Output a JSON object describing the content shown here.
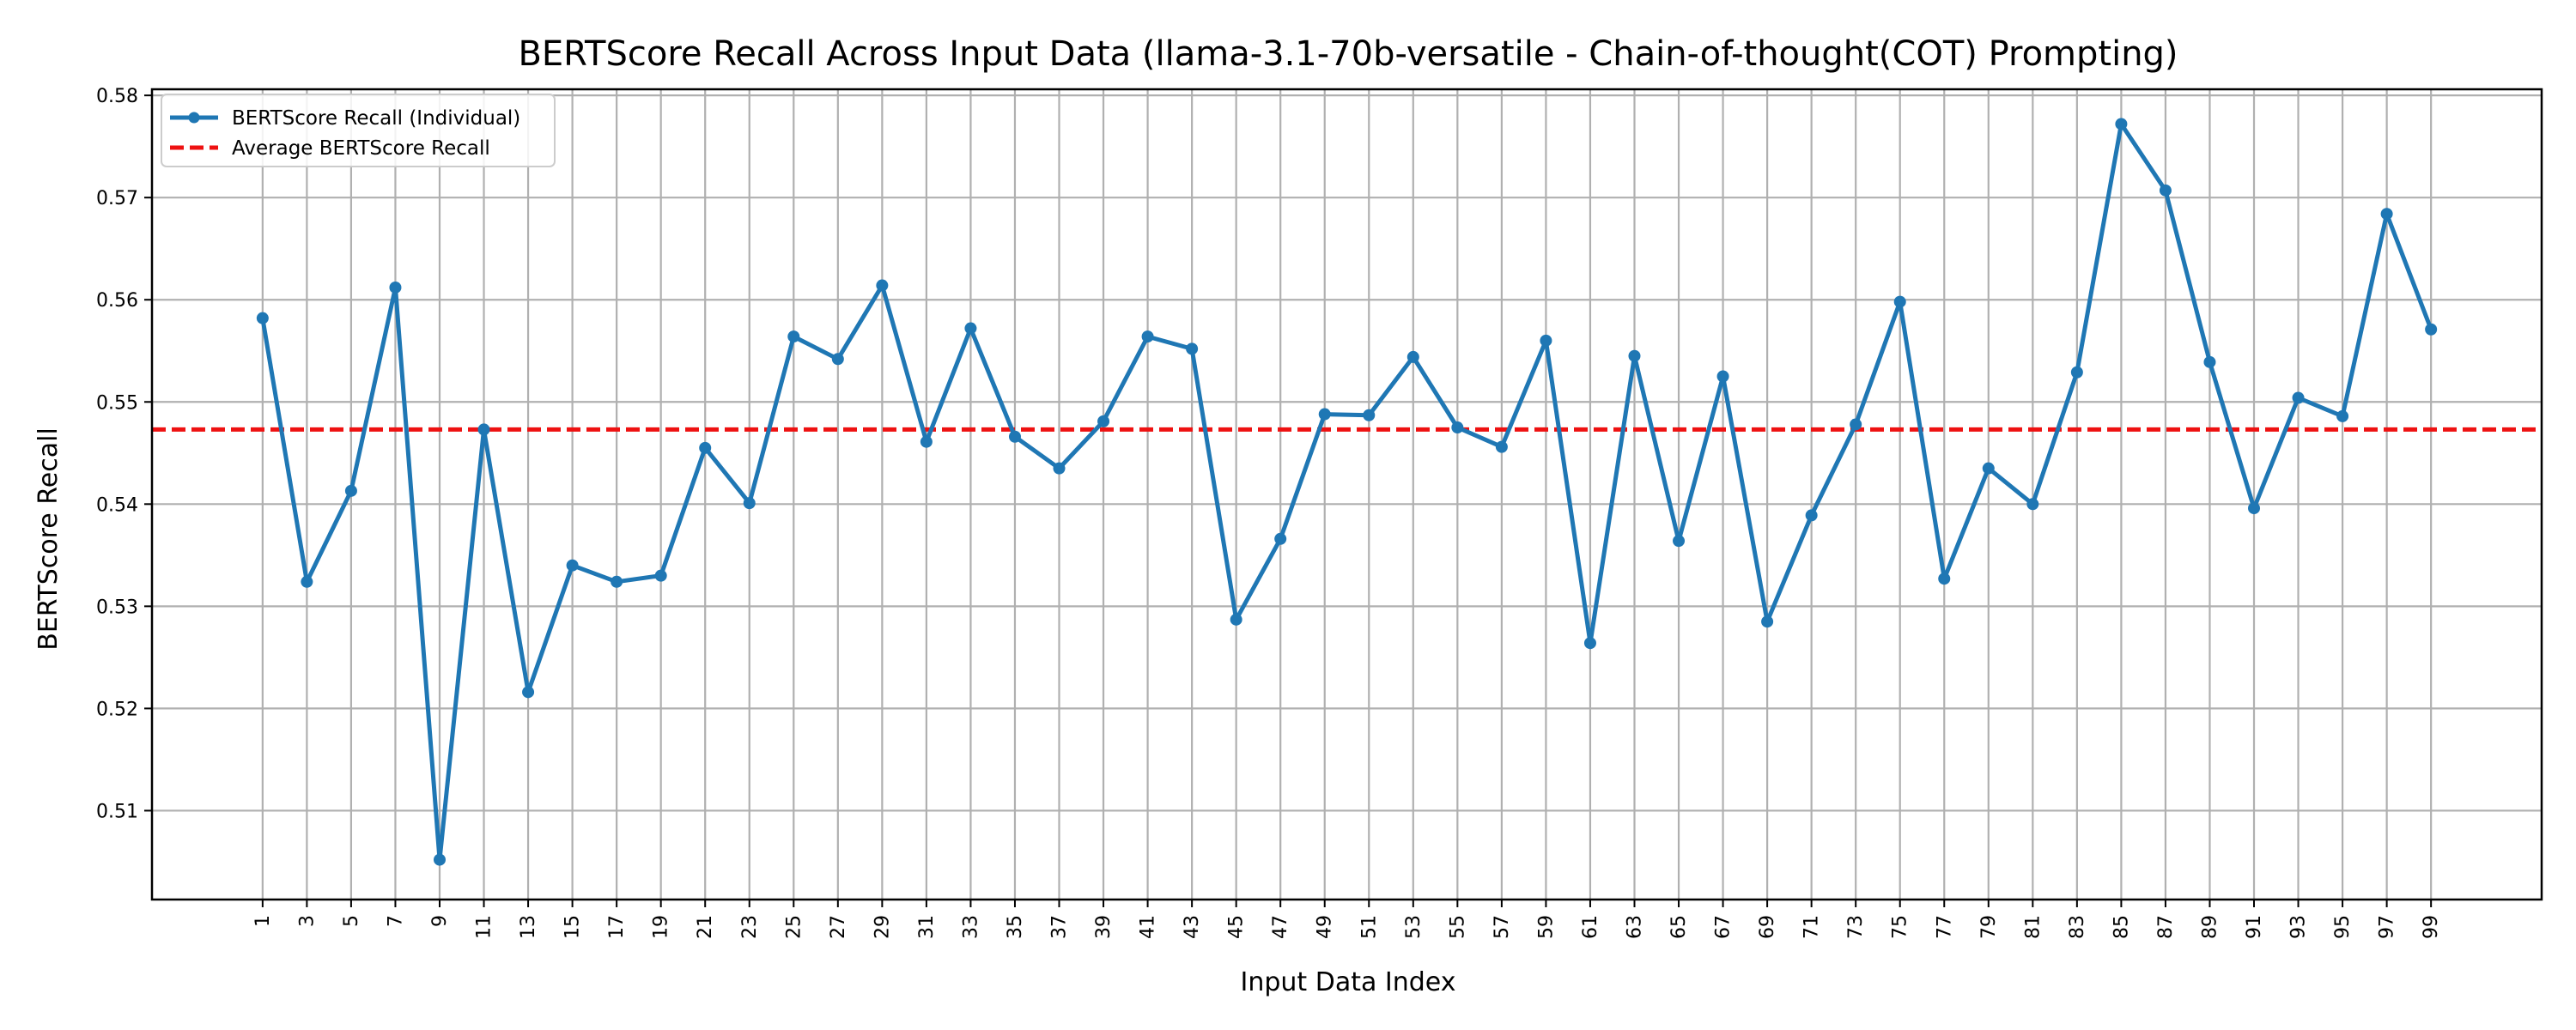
{
  "chart_data": {
    "type": "line",
    "title": "BERTScore Recall Across Input Data (llama-3.1-70b-versatile - Chain-of-thought(COT) Prompting)",
    "xlabel": "Input Data Index",
    "ylabel": "BERTScore Recall",
    "xlim": [
      -4,
      104
    ],
    "ylim": [
      0.5013,
      0.5806
    ],
    "x_ticks": [
      1,
      3,
      5,
      7,
      9,
      11,
      13,
      15,
      17,
      19,
      21,
      23,
      25,
      27,
      29,
      31,
      33,
      35,
      37,
      39,
      41,
      43,
      45,
      47,
      49,
      51,
      53,
      55,
      57,
      59,
      61,
      63,
      65,
      67,
      69,
      71,
      73,
      75,
      77,
      79,
      81,
      83,
      85,
      87,
      89,
      91,
      93,
      95,
      97,
      99
    ],
    "y_ticks": [
      0.51,
      0.52,
      0.53,
      0.54,
      0.55,
      0.56,
      0.57,
      0.58
    ],
    "y_tick_labels": [
      "0.51",
      "0.52",
      "0.53",
      "0.54",
      "0.55",
      "0.56",
      "0.57",
      "0.58"
    ],
    "grid": true,
    "legend_position": "top-left",
    "series": [
      {
        "name": "BERTScore Recall (Individual)",
        "color": "#1f77b4",
        "marker": "circle",
        "x": [
          1,
          3,
          5,
          7,
          9,
          11,
          13,
          15,
          17,
          19,
          21,
          23,
          25,
          27,
          29,
          31,
          33,
          35,
          37,
          39,
          41,
          43,
          45,
          47,
          49,
          51,
          53,
          55,
          57,
          59,
          61,
          63,
          65,
          67,
          69,
          71,
          73,
          75,
          77,
          79,
          81,
          83,
          85,
          87,
          89,
          91,
          93,
          95,
          97,
          99
        ],
        "values": [
          0.5582,
          0.5324,
          0.5413,
          0.5612,
          0.5052,
          0.5473,
          0.5216,
          0.534,
          0.5324,
          0.533,
          0.5455,
          0.5401,
          0.5564,
          0.5542,
          0.5614,
          0.5461,
          0.5572,
          0.5466,
          0.5435,
          0.5481,
          0.5564,
          0.5552,
          0.5287,
          0.5366,
          0.5488,
          0.5487,
          0.5544,
          0.5475,
          0.5456,
          0.556,
          0.5264,
          0.5545,
          0.5364,
          0.5525,
          0.5285,
          0.5389,
          0.5478,
          0.5598,
          0.5327,
          0.5435,
          0.54,
          0.5529,
          0.5772,
          0.5707,
          0.5539,
          0.5396,
          0.5504,
          0.5486,
          0.5684,
          0.5571
        ]
      },
      {
        "name": "Average BERTScore Recall",
        "color": "#ee1111",
        "style": "dashed",
        "value": 0.5473
      }
    ]
  }
}
